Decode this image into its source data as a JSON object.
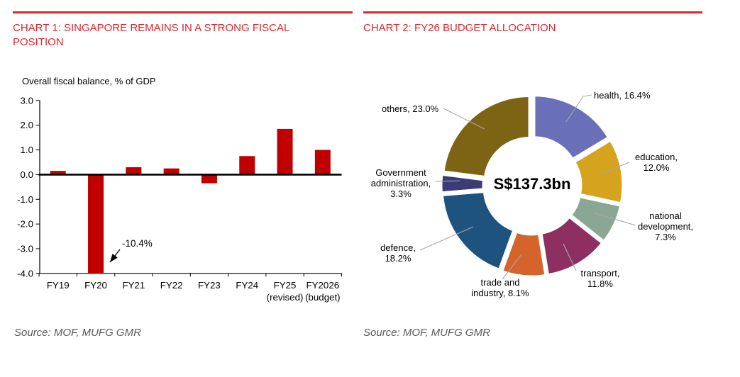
{
  "colors": {
    "accent_red": "#E1242A",
    "bar_red": "#C00000",
    "leader_gray": "#A8A8A8",
    "source_gray": "#595959"
  },
  "panels": [
    {
      "title_lines": [
        "CHART 1: SINGAPORE REMAINS IN A STRONG FISCAL",
        "POSITION"
      ],
      "source": "Source: MOF, MUFG GMR"
    },
    {
      "title_lines": [
        "CHART 2: FY26 BUDGET ALLOCATION"
      ],
      "source": "Source: MOF, MUFG GMR"
    }
  ],
  "chart_data": [
    {
      "type": "bar",
      "title": "Overall fiscal balance, % of GDP",
      "categories": [
        "FY19",
        "FY20",
        "FY21",
        "FY22",
        "FY23",
        "FY24",
        "FY25",
        "FY2026"
      ],
      "category_sublabels": [
        "",
        "",
        "",
        "",
        "",
        "",
        "(revised)",
        "(budget)"
      ],
      "values": [
        0.15,
        -10.4,
        0.3,
        0.25,
        -0.35,
        0.75,
        1.85,
        1.0
      ],
      "clip_min": -4.0,
      "ylim": [
        -4.0,
        3.0
      ],
      "ytick_step": 1.0,
      "bar_color": "#C00000",
      "grid": false,
      "annotation": {
        "text": "-10.4%",
        "category": "FY20"
      }
    },
    {
      "type": "donut",
      "title": "FY26 budget allocation",
      "center_label": "S$137.3bn",
      "slices": [
        {
          "name": "health",
          "pct": 16.4,
          "color": "#6A70B8",
          "label_lines": [
            "health, 16.4%"
          ]
        },
        {
          "name": "education",
          "pct": 12.0,
          "color": "#D6A31F",
          "label_lines": [
            "education,",
            "12.0%"
          ]
        },
        {
          "name": "national development",
          "pct": 7.3,
          "color": "#8AA795",
          "label_lines": [
            "national",
            "development,",
            "7.3%"
          ]
        },
        {
          "name": "transport",
          "pct": 11.8,
          "color": "#8E2F62",
          "label_lines": [
            "transport,",
            "11.8%"
          ]
        },
        {
          "name": "trade and industry",
          "pct": 8.1,
          "color": "#D4642B",
          "label_lines": [
            "trade and",
            "industry, 8.1%"
          ]
        },
        {
          "name": "defence",
          "pct": 18.2,
          "color": "#1F537F",
          "label_lines": [
            "defence,",
            "18.2%"
          ]
        },
        {
          "name": "Government administration",
          "pct": 3.3,
          "color": "#3B3B76",
          "label_lines": [
            "Government",
            "administration,",
            "3.3%"
          ]
        },
        {
          "name": "others",
          "pct": 23.0,
          "color": "#7D6414",
          "label_lines": [
            "others, 23.0%"
          ]
        }
      ]
    }
  ]
}
